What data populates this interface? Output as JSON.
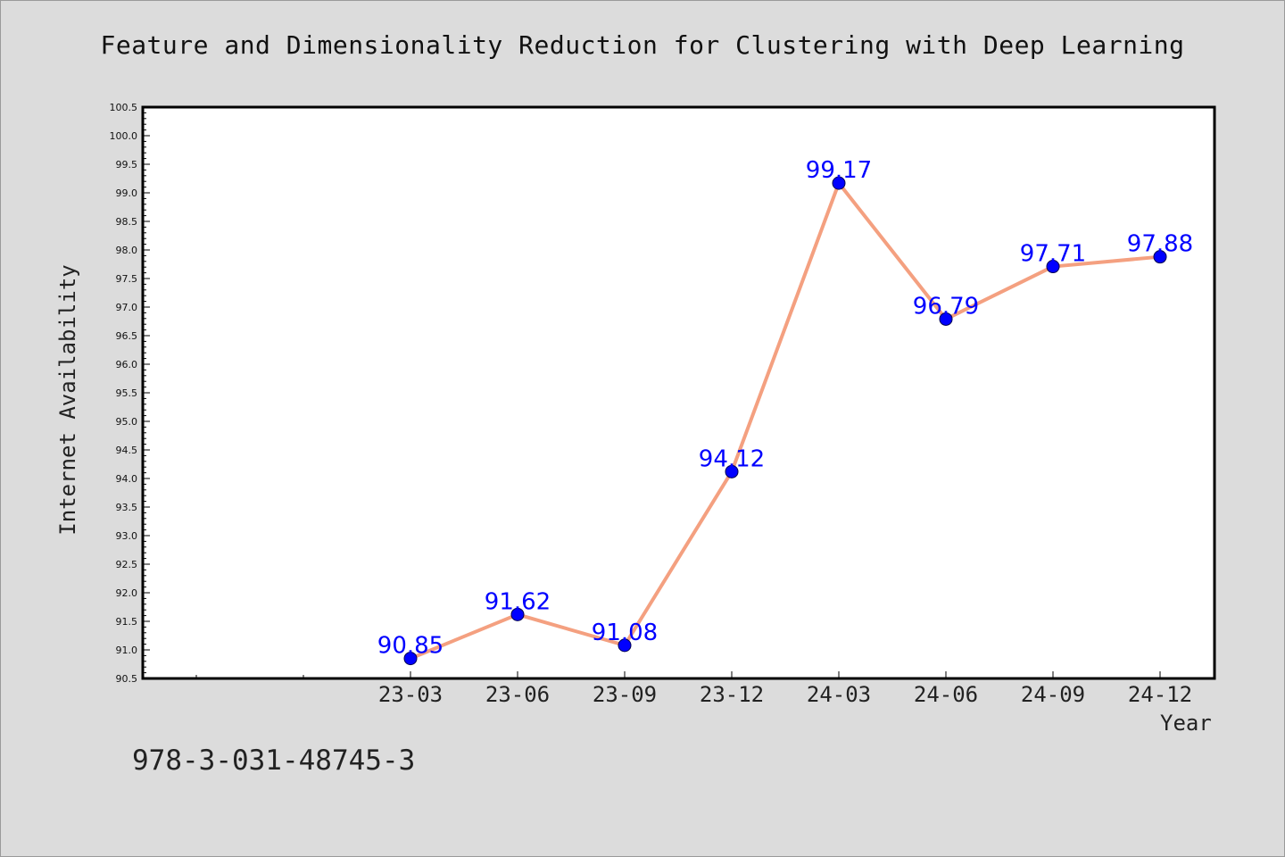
{
  "chart_data": {
    "type": "line",
    "title": "Feature and Dimensionality Reduction for Clustering with Deep Learning",
    "xlabel": "Year",
    "ylabel": "Internet Availability",
    "categories": [
      "23-03",
      "23-06",
      "23-09",
      "23-12",
      "24-03",
      "24-06",
      "24-09",
      "24-12"
    ],
    "series": [
      {
        "values": [
          90.85,
          91.62,
          91.08,
          94.12,
          99.17,
          96.79,
          97.71,
          97.88
        ],
        "labels": [
          "90.85",
          "91.62",
          "91.08",
          "94.12",
          "99.17",
          "96.79",
          "97.71",
          "97.88"
        ]
      }
    ],
    "ylim": [
      90.5,
      100.5
    ],
    "ytick_step": 0.5,
    "grid": false,
    "line_color": "#f4a080",
    "marker_color": "#0000ff",
    "label_color": "#0000ff",
    "background_color": "#dcdcdc",
    "plot_background": "#ffffff"
  },
  "footer": {
    "isbn": "978-3-031-48745-3"
  }
}
